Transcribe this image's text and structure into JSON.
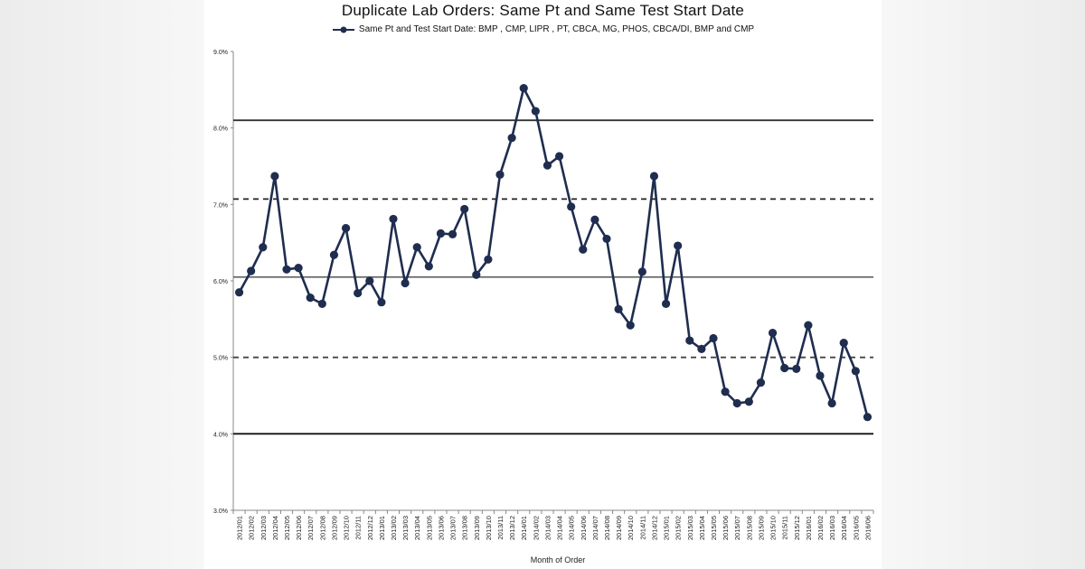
{
  "chart_data": {
    "type": "line",
    "title": "Duplicate Lab Orders: Same Pt and Same Test Start Date",
    "xlabel": "Month of Order",
    "ylabel": "",
    "ylim": [
      3.0,
      9.0
    ],
    "yticks": [
      "3.0%",
      "4.0%",
      "5.0%",
      "6.0%",
      "7.0%",
      "8.0%",
      "9.0%"
    ],
    "grid": false,
    "legend_position": "top",
    "categories": [
      "2012/01",
      "2012/02",
      "2012/03",
      "2012/04",
      "2012/05",
      "2012/06",
      "2012/07",
      "2012/08",
      "2012/09",
      "2012/10",
      "2012/11",
      "2012/12",
      "2013/01",
      "2013/02",
      "2013/03",
      "2013/04",
      "2013/05",
      "2013/06",
      "2013/07",
      "2013/08",
      "2013/09",
      "2013/10",
      "2013/11",
      "2013/12",
      "2014/01",
      "2014/02",
      "2014/03",
      "2014/04",
      "2014/05",
      "2014/06",
      "2014/07",
      "2014/08",
      "2014/09",
      "2014/10",
      "2014/11",
      "2014/12",
      "2015/01",
      "2015/02",
      "2015/03",
      "2015/04",
      "2015/05",
      "2015/06",
      "2015/07",
      "2015/08",
      "2015/09",
      "2015/10",
      "2015/11",
      "2015/12",
      "2016/01",
      "2016/02",
      "2016/03",
      "2016/04",
      "2016/05",
      "2016/06"
    ],
    "series": [
      {
        "name": "Same Pt and Test Start Date: BMP , CMP, LIPR , PT, CBCA, MG, PHOS, CBCA/DI, BMP and CMP",
        "color": "#1f2d4f",
        "values": [
          5.85,
          6.13,
          6.44,
          7.37,
          6.15,
          6.17,
          5.78,
          5.7,
          6.34,
          6.69,
          5.84,
          6.0,
          5.72,
          6.81,
          5.97,
          6.44,
          6.19,
          6.62,
          6.61,
          6.94,
          6.08,
          6.28,
          7.39,
          7.87,
          8.52,
          8.22,
          7.51,
          7.63,
          6.97,
          6.41,
          6.8,
          6.55,
          5.63,
          5.42,
          6.12,
          7.37,
          5.7,
          6.46,
          5.22,
          5.11,
          5.25,
          4.55,
          4.4,
          4.42,
          4.67,
          5.32,
          4.86,
          4.85,
          5.42,
          4.76,
          4.4,
          5.19,
          4.82,
          4.22
        ]
      }
    ],
    "reference_lines": [
      {
        "kind": "center",
        "value": 6.05,
        "style": "solid",
        "color": "#666666"
      },
      {
        "kind": "upper",
        "value": 8.1,
        "style": "solid",
        "color": "#333333"
      },
      {
        "kind": "upper",
        "value": 7.07,
        "style": "dashed",
        "color": "#222222"
      },
      {
        "kind": "lower",
        "value": 5.0,
        "style": "dashed",
        "color": "#444444"
      },
      {
        "kind": "lower",
        "value": 4.0,
        "style": "solid",
        "color": "#111111"
      }
    ]
  }
}
